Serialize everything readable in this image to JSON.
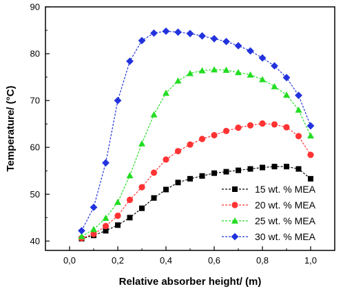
{
  "chart_data": {
    "type": "line",
    "title": "",
    "xlabel": "Relative absorber height/ (m)",
    "ylabel": "Temperature/ (°C)",
    "xlim": [
      -0.1,
      1.1
    ],
    "ylim": [
      38,
      90
    ],
    "xticks": [
      "0,0",
      "0,2",
      "0,4",
      "0,6",
      "0,8",
      "1,0"
    ],
    "xtick_values": [
      0.0,
      0.2,
      0.4,
      0.6,
      0.8,
      1.0
    ],
    "yticks": [
      "40",
      "50",
      "60",
      "70",
      "80",
      "90"
    ],
    "ytick_values": [
      40,
      50,
      60,
      70,
      80,
      90
    ],
    "legend_position": "bottom-right",
    "grid": false,
    "x": [
      0.05,
      0.1,
      0.15,
      0.2,
      0.25,
      0.3,
      0.35,
      0.4,
      0.45,
      0.5,
      0.55,
      0.6,
      0.65,
      0.7,
      0.75,
      0.8,
      0.85,
      0.9,
      0.95,
      1.0
    ],
    "series": [
      {
        "name": "15 wt. % MEA",
        "color": "#000000",
        "marker": "square",
        "values": [
          40.5,
          41.2,
          42.2,
          43.4,
          45.0,
          47.0,
          49.2,
          51.0,
          52.5,
          53.3,
          53.9,
          54.5,
          54.8,
          55.1,
          55.4,
          55.7,
          55.9,
          55.9,
          55.4,
          53.3
        ]
      },
      {
        "name": "20 wt. % MEA",
        "color": "#ff3333",
        "marker": "circle",
        "values": [
          40.6,
          41.5,
          43.2,
          45.4,
          48.8,
          51.5,
          54.6,
          57.4,
          59.2,
          60.6,
          61.8,
          62.6,
          63.5,
          64.2,
          64.7,
          65.1,
          64.9,
          64.3,
          62.4,
          58.4
        ]
      },
      {
        "name": "25 wt. % MEA",
        "color": "#22dd22",
        "marker": "triangle",
        "values": [
          41.0,
          42.5,
          44.9,
          48.3,
          54.0,
          60.8,
          67.0,
          71.6,
          74.2,
          75.8,
          76.4,
          76.6,
          76.5,
          76.0,
          75.5,
          74.5,
          73.0,
          71.2,
          68.0,
          62.5
        ]
      },
      {
        "name": "30 wt. % MEA",
        "color": "#2233dd",
        "marker": "diamond",
        "values": [
          42.2,
          47.2,
          56.7,
          70.0,
          78.4,
          82.8,
          84.4,
          84.8,
          84.6,
          84.3,
          83.8,
          83.2,
          82.6,
          81.7,
          80.6,
          79.1,
          77.4,
          74.9,
          71.1,
          64.6
        ]
      }
    ]
  }
}
